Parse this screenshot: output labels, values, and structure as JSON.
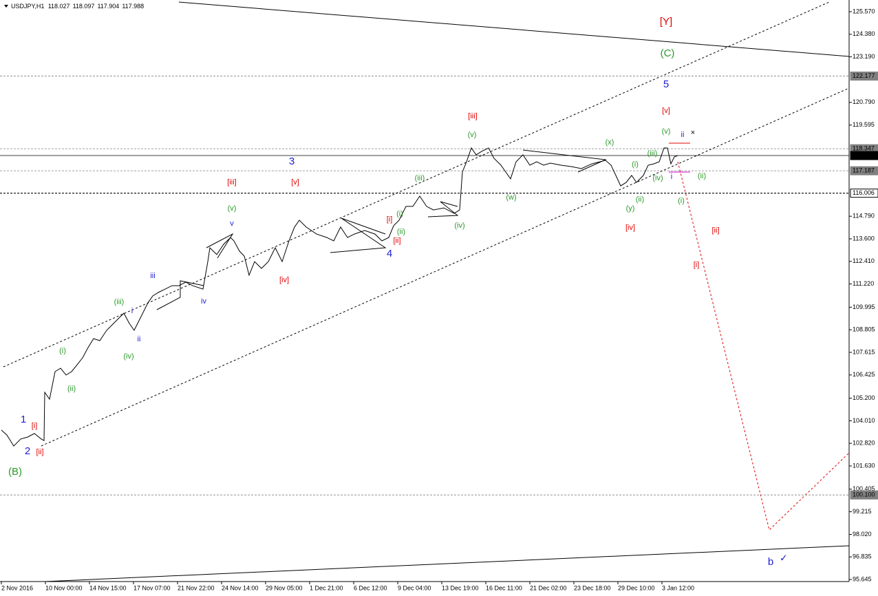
{
  "chart_data": {
    "type": "line",
    "header": {
      "symbol": "USDJPY,H1",
      "open": 118.027,
      "high": 118.097,
      "low": 117.904,
      "close": 117.988
    },
    "xlim": [
      0,
      617
    ],
    "xticks": [
      {
        "value": 1,
        "label": "2 Nov 2016"
      },
      {
        "value": 33,
        "label": "10 Nov 00:00"
      },
      {
        "value": 65,
        "label": "14 Nov 15:00"
      },
      {
        "value": 97,
        "label": "17 Nov 07:00"
      },
      {
        "value": 129,
        "label": "21 Nov 22:00"
      },
      {
        "value": 161,
        "label": "24 Nov 14:00"
      },
      {
        "value": 193,
        "label": "29 Nov 05:00"
      },
      {
        "value": 225,
        "label": "1 Dec 21:00"
      },
      {
        "value": 257,
        "label": "6 Dec 12:00"
      },
      {
        "value": 289,
        "label": "9 Dec 04:00"
      },
      {
        "value": 321,
        "label": "13 Dec 19:00"
      },
      {
        "value": 353,
        "label": "16 Dec 11:00"
      },
      {
        "value": 385,
        "label": "21 Dec 02:00"
      },
      {
        "value": 417,
        "label": "23 Dec 18:00"
      },
      {
        "value": 449,
        "label": "29 Dec 10:00"
      },
      {
        "value": 481,
        "label": "3 Jan 12:00"
      }
    ],
    "ylim": [
      95.536,
      126.187
    ],
    "yticks": [
      {
        "value": 125.57,
        "label": "125.570"
      },
      {
        "value": 124.38,
        "label": "124.380"
      },
      {
        "value": 123.19,
        "label": "123.190"
      },
      {
        "value": 120.79,
        "label": "120.790"
      },
      {
        "value": 119.595,
        "label": "119.595"
      },
      {
        "value": 114.79,
        "label": "114.790"
      },
      {
        "value": 113.6,
        "label": "113.600"
      },
      {
        "value": 112.41,
        "label": "112.410"
      },
      {
        "value": 111.22,
        "label": "111.220"
      },
      {
        "value": 109.995,
        "label": "109.995"
      },
      {
        "value": 108.805,
        "label": "108.805"
      },
      {
        "value": 107.615,
        "label": "107.615"
      },
      {
        "value": 106.425,
        "label": "106.425"
      },
      {
        "value": 105.2,
        "label": "105.200"
      },
      {
        "value": 104.01,
        "label": "104.010"
      },
      {
        "value": 102.82,
        "label": "102.820"
      },
      {
        "value": 101.63,
        "label": "101.630"
      },
      {
        "value": 100.405,
        "label": "100.405"
      },
      {
        "value": 99.215,
        "label": "99.215"
      },
      {
        "value": 98.02,
        "label": "98.020"
      },
      {
        "value": 96.835,
        "label": "96.835"
      },
      {
        "value": 95.645,
        "label": "95.645"
      }
    ],
    "levels": [
      {
        "value": 122.177,
        "label": "122.177",
        "color": "#808080",
        "style": "dashed"
      },
      {
        "value": 118.347,
        "label": "118.347",
        "color": "#808080",
        "style": "dashed"
      },
      {
        "value": 117.988,
        "label": "117.988",
        "color": "#000000",
        "style": "solid"
      },
      {
        "value": 117.187,
        "label": "117.187",
        "color": "#808080",
        "style": "dashed"
      },
      {
        "value": 116.006,
        "label": "116.006",
        "color": "#000000",
        "style": "dashed"
      },
      {
        "value": 100.1,
        "label": "100.100",
        "color": "#808080",
        "style": "dashed"
      }
    ],
    "series": [
      {
        "color": "#000000",
        "x": [
          1,
          5,
          10,
          15,
          20,
          25,
          30,
          32,
          32.5,
          36,
          40,
          44,
          48,
          52,
          56,
          60,
          64,
          68,
          72.5,
          77.5,
          82.5,
          87.5,
          90,
          94,
          97.5,
          102.5,
          107.5,
          111,
          115,
          120,
          125,
          130,
          135,
          140,
          147.5,
          151,
          152.5,
          157.5,
          162.5,
          167.5,
          170,
          174,
          177.5,
          181,
          185,
          190,
          195,
          200,
          205,
          210,
          214,
          217.5,
          222.5,
          230,
          237.5,
          242.5,
          247.5,
          252.5,
          257.5,
          265,
          272.5,
          277.5,
          282.5,
          286,
          290,
          295,
          300,
          305,
          310,
          315,
          322.5,
          330,
          334,
          336,
          339,
          342.5,
          346,
          350,
          355,
          359,
          364,
          367.5,
          371,
          375,
          380,
          385,
          390,
          395,
          400,
          407.5,
          415,
          422.5,
          430,
          440,
          444,
          447.5,
          451,
          455,
          459,
          462.5,
          467.5,
          471,
          475,
          479,
          482.5,
          485,
          487.5,
          490,
          492.5
        ],
        "values": [
          103.52,
          103.26,
          102.68,
          103.05,
          103.15,
          103.34,
          103.05,
          102.97,
          105.51,
          105.15,
          106.6,
          106.78,
          106.42,
          106.6,
          106.96,
          107.33,
          107.87,
          108.34,
          108.23,
          108.78,
          109.14,
          109.5,
          109.68,
          109.14,
          108.78,
          109.5,
          110.23,
          110.59,
          110.77,
          110.95,
          111.13,
          111.13,
          111.32,
          111.13,
          110.95,
          112.4,
          113.13,
          112.77,
          113.31,
          113.67,
          113.49,
          112.95,
          112.69,
          111.68,
          112.4,
          112.04,
          112.4,
          113.13,
          112.4,
          113.49,
          114.22,
          114.58,
          114.22,
          113.85,
          113.67,
          113.49,
          114.22,
          113.67,
          113.85,
          114.04,
          113.85,
          113.49,
          113.67,
          114.29,
          114.58,
          115.31,
          115.31,
          115.85,
          115.31,
          115.12,
          115.23,
          114.94,
          115.12,
          117.12,
          117.66,
          118.39,
          118.03,
          118.21,
          118.39,
          117.84,
          117.48,
          117.12,
          116.76,
          117.66,
          118.03,
          117.48,
          117.66,
          117.48,
          117.59,
          117.48,
          117.41,
          117.3,
          117.55,
          117.74,
          117.48,
          116.94,
          116.39,
          116.57,
          116.94,
          116.57,
          116.94,
          117.48,
          117.55,
          117.66,
          118.39,
          118.39,
          117.55,
          117.92,
          117.99
        ]
      }
    ],
    "wave_labels": [
      {
        "text": "[Y]",
        "color": "#e00000"
      },
      {
        "text": "(C)",
        "color": "#2a9a2a"
      },
      {
        "text": "5",
        "color": "#1c1cd6"
      },
      {
        "text": "[v]",
        "color": "#e00000"
      },
      {
        "text": "(v)",
        "color": "#2a9a2a"
      },
      {
        "text": "ii",
        "color": "#1c1cd6"
      },
      {
        "text": "(x)",
        "color": "#2a9a2a"
      },
      {
        "text": "(iii)",
        "color": "#2a9a2a"
      },
      {
        "text": "(i)",
        "color": "#2a9a2a"
      },
      {
        "text": "(iv)",
        "color": "#2a9a2a"
      },
      {
        "text": "i",
        "color": "#1c1cd6"
      },
      {
        "text": "(ii)",
        "color": "#2a9a2a"
      },
      {
        "text": "(ii)",
        "color": "#2a9a2a"
      },
      {
        "text": "(i)",
        "color": "#2a9a2a"
      },
      {
        "text": "(y)",
        "color": "#2a9a2a"
      },
      {
        "text": "[iv]",
        "color": "#e00000"
      },
      {
        "text": "[ii]",
        "color": "#e00000"
      },
      {
        "text": "[i]",
        "color": "#e00000"
      },
      {
        "text": "[iii]",
        "color": "#e00000"
      },
      {
        "text": "(v)",
        "color": "#2a9a2a"
      },
      {
        "text": "(w)",
        "color": "#2a9a2a"
      },
      {
        "text": "3",
        "color": "#1c1cd6"
      },
      {
        "text": "[iii]",
        "color": "#e00000"
      },
      {
        "text": "[v]",
        "color": "#e00000"
      },
      {
        "text": "(iii)",
        "color": "#2a9a2a"
      },
      {
        "text": "(v)",
        "color": "#2a9a2a"
      },
      {
        "text": "v",
        "color": "#1c1cd6"
      },
      {
        "text": "[i]",
        "color": "#e00000"
      },
      {
        "text": "(i)",
        "color": "#2a9a2a"
      },
      {
        "text": "(ii)",
        "color": "#2a9a2a"
      },
      {
        "text": "[ii]",
        "color": "#e00000"
      },
      {
        "text": "4",
        "color": "#1c1cd6"
      },
      {
        "text": "(iv)",
        "color": "#2a9a2a"
      },
      {
        "text": "[iv]",
        "color": "#e00000"
      },
      {
        "text": "iii",
        "color": "#1c1cd6"
      },
      {
        "text": "iv",
        "color": "#1c1cd6"
      },
      {
        "text": "(iii)",
        "color": "#2a9a2a"
      },
      {
        "text": "i",
        "color": "#1c1cd6"
      },
      {
        "text": "ii",
        "color": "#1c1cd6"
      },
      {
        "text": "(iv)",
        "color": "#2a9a2a"
      },
      {
        "text": "(i)",
        "color": "#2a9a2a"
      },
      {
        "text": "(ii)",
        "color": "#2a9a2a"
      },
      {
        "text": "1",
        "color": "#1c1cd6"
      },
      {
        "text": "[i]",
        "color": "#e00000"
      },
      {
        "text": "2",
        "color": "#1c1cd6"
      },
      {
        "text": "[ii]",
        "color": "#e00000"
      },
      {
        "text": "(B)",
        "color": "#2a9a2a"
      },
      {
        "text": "b",
        "color": "#1c1cd6"
      }
    ]
  }
}
